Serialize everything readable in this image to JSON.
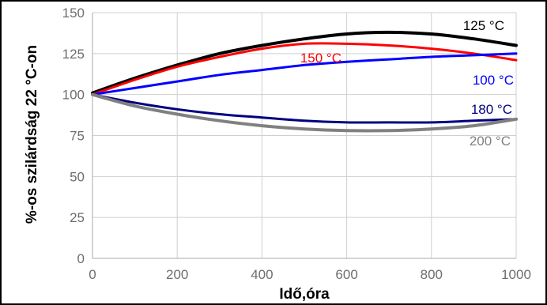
{
  "chart_data": {
    "type": "line",
    "title": "",
    "xlabel": "Idő,óra",
    "ylabel": "%-os szilárdság 22 °C-on",
    "xlim": [
      0,
      1000
    ],
    "ylim": [
      0,
      150
    ],
    "x_ticks": [
      "0",
      "200",
      "400",
      "600",
      "800",
      "1000"
    ],
    "y_ticks": [
      "0",
      "25",
      "50",
      "75",
      "100",
      "125",
      "150"
    ],
    "grid": true,
    "legend": "inline labels",
    "series": [
      {
        "name": "125 °C",
        "color": "#000000",
        "x": [
          0,
          100,
          200,
          300,
          400,
          500,
          600,
          700,
          800,
          900,
          1000
        ],
        "y": [
          101,
          110,
          118,
          125,
          130,
          134,
          137,
          138,
          137,
          134,
          130
        ]
      },
      {
        "name": "150 °C",
        "color": "#ff0000",
        "x": [
          0,
          100,
          200,
          300,
          400,
          500,
          600,
          700,
          800,
          900,
          1000
        ],
        "y": [
          100,
          109,
          117,
          123,
          128,
          131,
          131,
          130,
          128,
          125,
          121
        ]
      },
      {
        "name": "100 °C",
        "color": "#0000ff",
        "x": [
          0,
          100,
          200,
          300,
          400,
          500,
          600,
          700,
          800,
          900,
          1000
        ],
        "y": [
          100,
          104,
          108,
          112,
          115,
          118,
          120,
          121.5,
          123,
          124,
          125
        ]
      },
      {
        "name": "180 °C",
        "color": "#00007f",
        "x": [
          0,
          100,
          200,
          300,
          400,
          500,
          600,
          700,
          800,
          900,
          1000
        ],
        "y": [
          100,
          95,
          91,
          88,
          86,
          84,
          83,
          83,
          83,
          84,
          85
        ]
      },
      {
        "name": "200 °C",
        "color": "#808080",
        "x": [
          0,
          100,
          200,
          300,
          400,
          500,
          600,
          700,
          800,
          900,
          1000
        ],
        "y": [
          100,
          93,
          88,
          84,
          81,
          79,
          78,
          78,
          79,
          81,
          85
        ]
      }
    ]
  }
}
